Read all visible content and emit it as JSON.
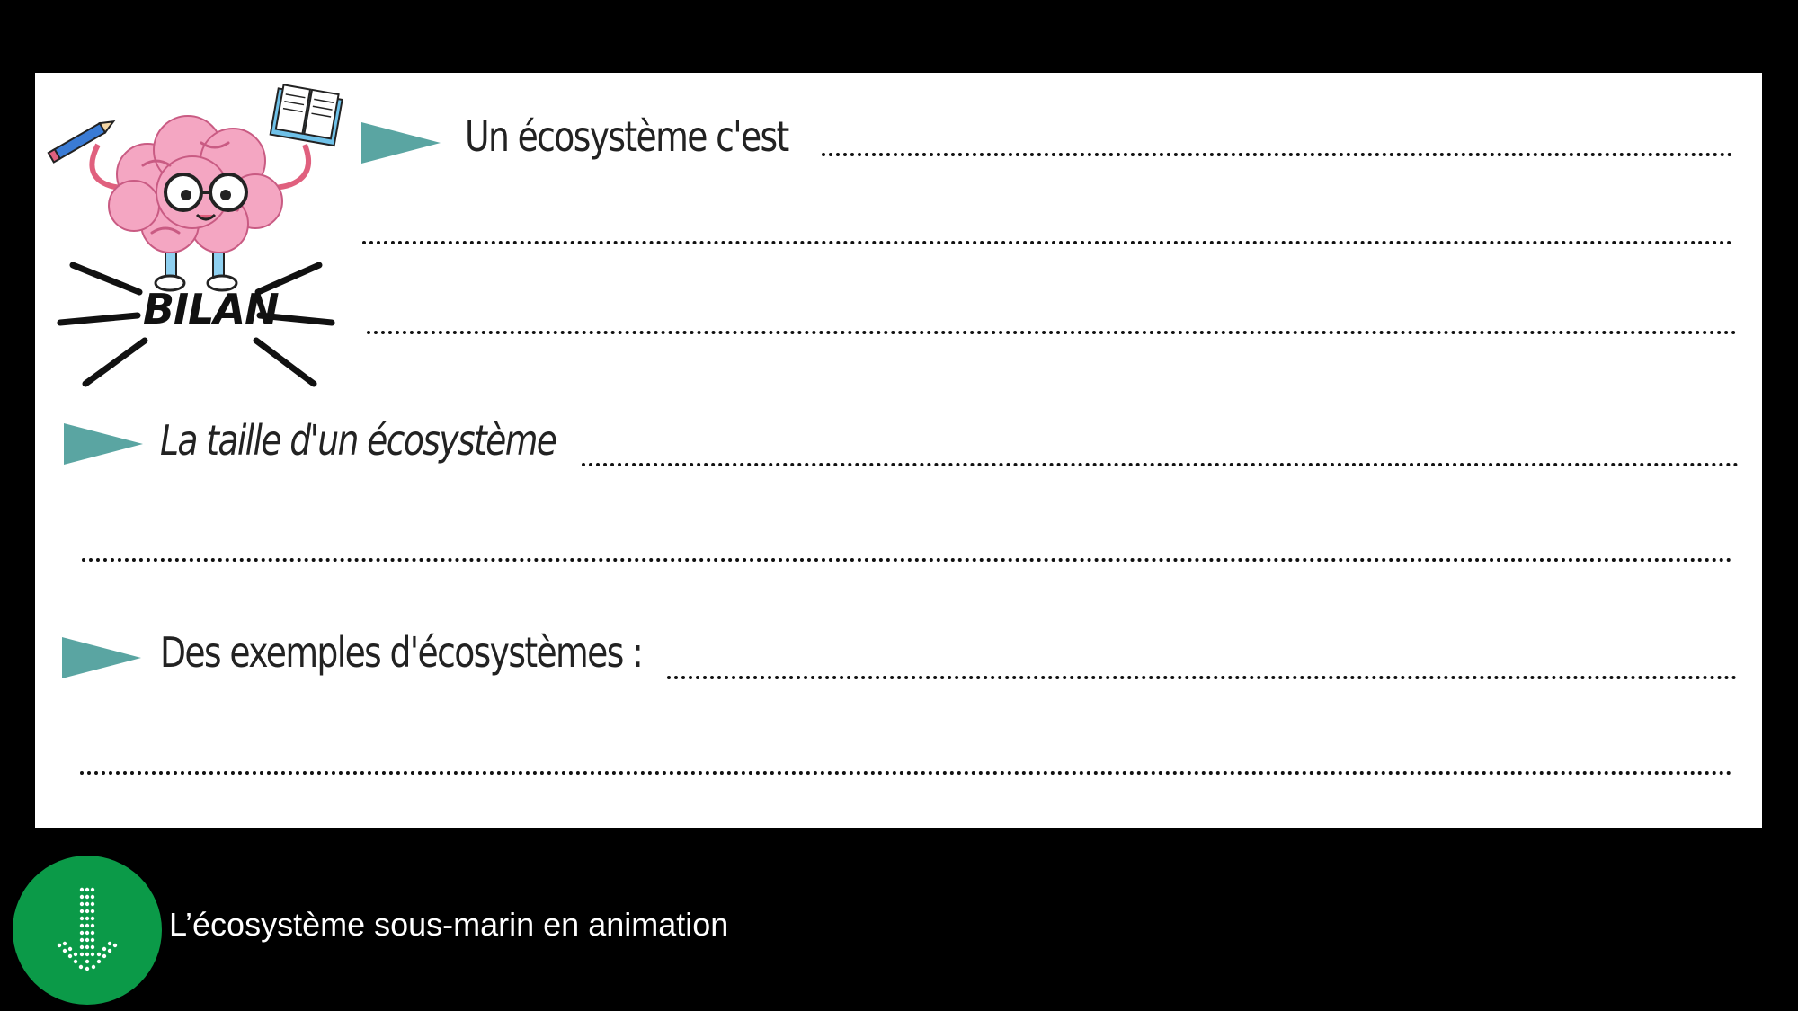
{
  "slide": {
    "heading_badge": "BILAN",
    "line1_label": "Un écosystème c'est",
    "line2_label": "La taille d'un écosystème",
    "line3_label": "Des exemples d'écosystèmes :",
    "accent_color": "#5aa5a2"
  },
  "footer": {
    "caption": "L’écosystème sous-marin en animation",
    "play_icon": "download-arrow-icon",
    "play_color": "#0b9a48"
  }
}
